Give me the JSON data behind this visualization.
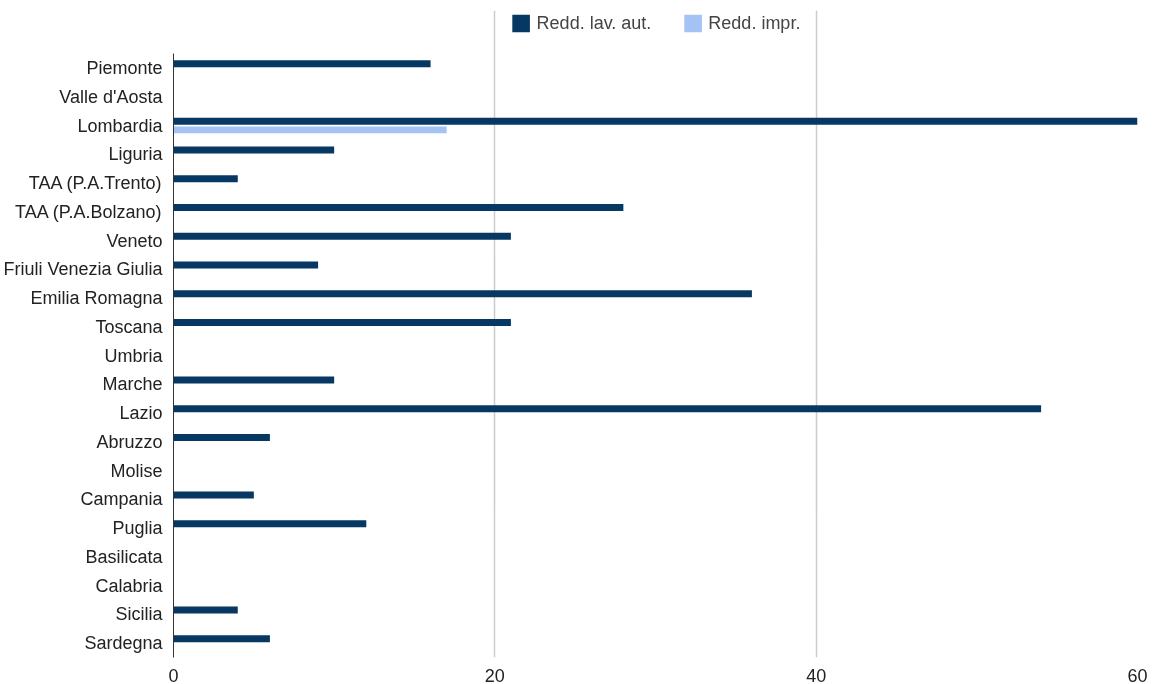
{
  "chart_data": {
    "type": "bar",
    "orientation": "horizontal",
    "categories": [
      "Piemonte",
      "Valle d'Aosta",
      "Lombardia",
      "Liguria",
      "TAA (P.A.Trento)",
      "TAA (P.A.Bolzano)",
      "Veneto",
      "Friuli Venezia Giulia",
      "Emilia Romagna",
      "Toscana",
      "Umbria",
      "Marche",
      "Lazio",
      "Abruzzo",
      "Molise",
      "Campania",
      "Puglia",
      "Basilicata",
      "Calabria",
      "Sicilia",
      "Sardegna"
    ],
    "series": [
      {
        "name": "Redd. lav. aut.",
        "color": "#073763",
        "values": [
          16,
          null,
          60,
          10,
          4,
          28,
          21,
          9,
          36,
          21,
          null,
          10,
          54,
          6,
          null,
          5,
          12,
          null,
          null,
          4,
          6
        ]
      },
      {
        "name": "Redd. impr.",
        "color": "#a4c2f4",
        "values": [
          null,
          null,
          17,
          null,
          null,
          null,
          null,
          null,
          null,
          null,
          null,
          null,
          null,
          null,
          null,
          null,
          null,
          null,
          null,
          null,
          null
        ]
      }
    ],
    "xlim": [
      0,
      60
    ],
    "xticks": [
      0,
      20,
      40,
      60
    ],
    "grid": "x",
    "legend": "top"
  }
}
